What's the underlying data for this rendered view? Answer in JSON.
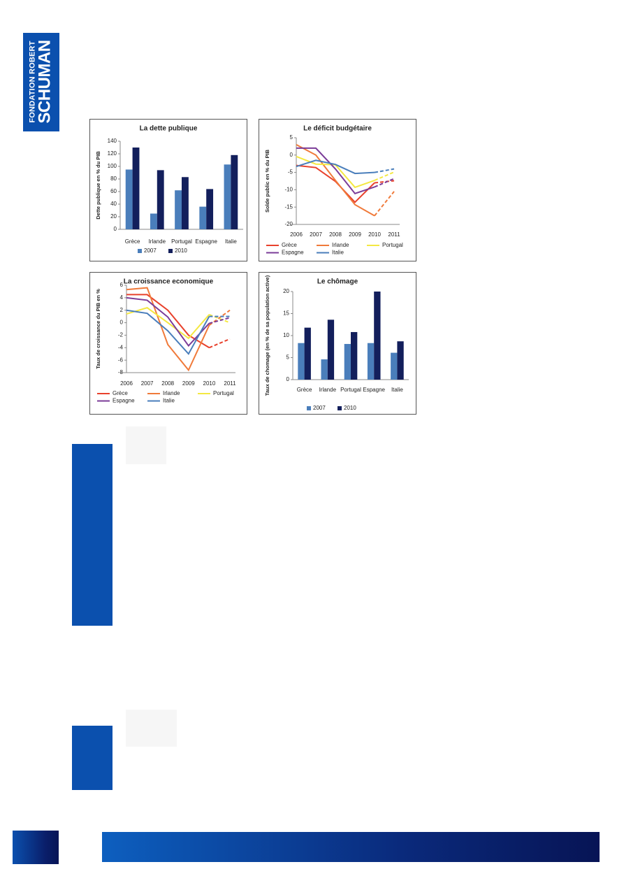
{
  "header": {
    "logo_line1": "FONDATION ROBERT",
    "logo_line2": "SCHUMAN"
  },
  "chart_data": [
    {
      "type": "bar",
      "title": "La dette publique",
      "ylabel": "Dette publique en % du PIB",
      "categories": [
        "Grèce",
        "Irlande",
        "Portugal",
        "Espagne",
        "Italie"
      ],
      "series": [
        {
          "name": "2007",
          "color": "#4a7ebb",
          "values": [
            95,
            25,
            62,
            36,
            103
          ]
        },
        {
          "name": "2010",
          "color": "#131f5c",
          "values": [
            130,
            94,
            83,
            64,
            118
          ]
        }
      ],
      "ylim": [
        0,
        140
      ],
      "yticks": [
        0,
        20,
        40,
        60,
        80,
        100,
        120,
        140
      ],
      "grid": false
    },
    {
      "type": "line",
      "title": "Le déficit budgétaire",
      "ylabel": "Solde public en % du PIB",
      "categories": [
        "2006",
        "2007",
        "2008",
        "2009",
        "2010",
        "2011"
      ],
      "dashed_from": "2010",
      "series": [
        {
          "name": "Grèce",
          "color": "#e8412c",
          "values": [
            -3,
            -3.6,
            -7.6,
            -13.6,
            -8,
            -7.4
          ]
        },
        {
          "name": "Irlande",
          "color": "#f07a3a",
          "values": [
            3,
            0,
            -7.3,
            -14.3,
            -17.5,
            -10.5
          ]
        },
        {
          "name": "Portugal",
          "color": "#f4e842",
          "values": [
            -0.4,
            -2.6,
            -2.8,
            -9.3,
            -7.3,
            -4.9
          ]
        },
        {
          "name": "Espagne",
          "color": "#7b3c98",
          "values": [
            2,
            2,
            -4,
            -11.1,
            -9.2,
            -6.8
          ]
        },
        {
          "name": "Italie",
          "color": "#4a7ebb",
          "values": [
            -3.3,
            -1.5,
            -2.7,
            -5.3,
            -5,
            -4
          ]
        }
      ],
      "ylim": [
        -20,
        5
      ],
      "yticks": [
        -20,
        -15,
        -10,
        -5,
        0,
        5
      ],
      "grid": false
    },
    {
      "type": "line",
      "title": "La croissance economique",
      "ylabel": "Taux de croissance du PIB en %",
      "categories": [
        "2006",
        "2007",
        "2008",
        "2009",
        "2010",
        "2011"
      ],
      "dashed_from": "2010",
      "series": [
        {
          "name": "Grèce",
          "color": "#e8412c",
          "values": [
            4.5,
            4.5,
            2,
            -2,
            -4,
            -2.6
          ]
        },
        {
          "name": "Irlande",
          "color": "#f07a3a",
          "values": [
            5.3,
            5.6,
            -3.5,
            -7.6,
            -0.4,
            2
          ]
        },
        {
          "name": "Portugal",
          "color": "#f4e842",
          "values": [
            1.4,
            2.4,
            0,
            -2.5,
            1.3,
            0
          ]
        },
        {
          "name": "Espagne",
          "color": "#7b3c98",
          "values": [
            4,
            3.6,
            0.9,
            -3.7,
            -0.1,
            0.8
          ]
        },
        {
          "name": "Italie",
          "color": "#4a7ebb",
          "values": [
            2,
            1.5,
            -1.3,
            -5,
            1,
            1
          ]
        }
      ],
      "ylim": [
        -8,
        6
      ],
      "yticks": [
        -8,
        -6,
        -4,
        -2,
        0,
        2,
        4,
        6
      ],
      "grid": false
    },
    {
      "type": "bar",
      "title": "Le chômage",
      "ylabel": "Taux de chomage (en % de sa population active)",
      "categories": [
        "Grèce",
        "Irlande",
        "Portugal",
        "Espagne",
        "Italie"
      ],
      "series": [
        {
          "name": "2007",
          "color": "#4a7ebb",
          "values": [
            8.3,
            4.6,
            8.1,
            8.3,
            6.1
          ]
        },
        {
          "name": "2010",
          "color": "#131f5c",
          "values": [
            11.8,
            13.6,
            10.8,
            20,
            8.7
          ]
        }
      ],
      "ylim": [
        0,
        20
      ],
      "yticks": [
        0,
        5,
        10,
        15,
        20
      ],
      "grid": false
    }
  ]
}
